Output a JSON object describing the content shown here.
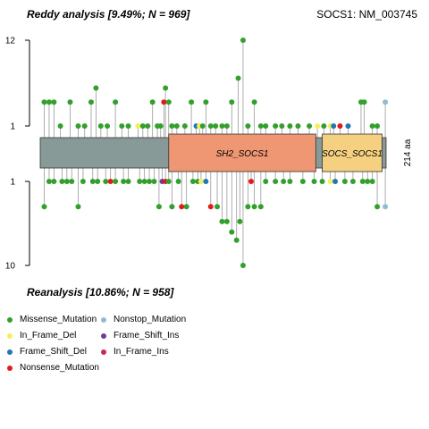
{
  "titles": {
    "top": "Reddy analysis [9.49%; N = 969]",
    "bottom": "Reanalysis [10.86%; N = 958]",
    "gene": "SOCS1: NM_003745"
  },
  "chart_data": {
    "type": "lollipop",
    "protein_length": 214,
    "length_label": "214 aa",
    "axis_top": {
      "ticks": [
        1,
        12
      ],
      "tick_labels": [
        "1",
        "12"
      ],
      "range": [
        1,
        12
      ]
    },
    "axis_bottom": {
      "ticks": [
        1,
        10
      ],
      "tick_labels": [
        "1",
        "10"
      ],
      "range": [
        1,
        10
      ]
    },
    "domains": [
      {
        "name": "SH2_SOCS1",
        "start": 80,
        "end": 171,
        "color": "#ef9673"
      },
      {
        "name": "SOCS_SOCS1",
        "start": 175,
        "end": 212,
        "color": "#f4d080"
      }
    ],
    "backbone_color": "#879a98",
    "legend": [
      {
        "label": "Missense_Mutation",
        "color": "#33a02c"
      },
      {
        "label": "Nonstop_Mutation",
        "color": "#8fbdd0"
      },
      {
        "label": "In_Frame_Del",
        "color": "#f5ef5b"
      },
      {
        "label": "Frame_Shift_Ins",
        "color": "#6a3d9a"
      },
      {
        "label": "Frame_Shift_Del",
        "color": "#1f78b4"
      },
      {
        "label": "In_Frame_Ins",
        "color": "#c62a50"
      },
      {
        "label": "Nonsense_Mutation",
        "color": "#e31a1c"
      }
    ],
    "top_mutations": [
      {
        "pos": 3,
        "count": 2,
        "type": "Missense_Mutation"
      },
      {
        "pos": 6,
        "count": 2,
        "type": "Missense_Mutation"
      },
      {
        "pos": 9,
        "count": 2,
        "type": "Missense_Mutation"
      },
      {
        "pos": 13,
        "count": 1,
        "type": "Missense_Mutation"
      },
      {
        "pos": 19,
        "count": 2,
        "type": "Missense_Mutation"
      },
      {
        "pos": 24,
        "count": 1,
        "type": "Missense_Mutation"
      },
      {
        "pos": 28,
        "count": 1,
        "type": "Missense_Mutation"
      },
      {
        "pos": 32,
        "count": 2,
        "type": "Missense_Mutation"
      },
      {
        "pos": 35,
        "count": 3,
        "type": "Missense_Mutation"
      },
      {
        "pos": 38,
        "count": 1,
        "type": "Missense_Mutation"
      },
      {
        "pos": 42,
        "count": 1,
        "type": "Missense_Mutation"
      },
      {
        "pos": 47,
        "count": 2,
        "type": "Missense_Mutation"
      },
      {
        "pos": 51,
        "count": 1,
        "type": "Missense_Mutation"
      },
      {
        "pos": 55,
        "count": 1,
        "type": "Missense_Mutation"
      },
      {
        "pos": 61,
        "count": 1,
        "type": "In_Frame_Del"
      },
      {
        "pos": 64,
        "count": 1,
        "type": "Missense_Mutation"
      },
      {
        "pos": 67,
        "count": 1,
        "type": "Missense_Mutation"
      },
      {
        "pos": 70,
        "count": 2,
        "type": "Missense_Mutation"
      },
      {
        "pos": 73,
        "count": 1,
        "type": "Missense_Mutation"
      },
      {
        "pos": 75,
        "count": 1,
        "type": "Missense_Mutation"
      },
      {
        "pos": 77,
        "count": 2,
        "type": "Nonsense_Mutation"
      },
      {
        "pos": 78,
        "count": 3,
        "type": "Missense_Mutation"
      },
      {
        "pos": 80,
        "count": 2,
        "type": "Missense_Mutation"
      },
      {
        "pos": 82,
        "count": 1,
        "type": "Missense_Mutation"
      },
      {
        "pos": 85,
        "count": 1,
        "type": "Missense_Mutation"
      },
      {
        "pos": 90,
        "count": 1,
        "type": "Missense_Mutation"
      },
      {
        "pos": 94,
        "count": 2,
        "type": "Missense_Mutation"
      },
      {
        "pos": 97,
        "count": 1,
        "type": "Frame_Shift_Del"
      },
      {
        "pos": 99,
        "count": 1,
        "type": "In_Frame_Del"
      },
      {
        "pos": 101,
        "count": 1,
        "type": "Missense_Mutation"
      },
      {
        "pos": 103,
        "count": 2,
        "type": "Missense_Mutation"
      },
      {
        "pos": 106,
        "count": 1,
        "type": "Missense_Mutation"
      },
      {
        "pos": 109,
        "count": 1,
        "type": "Missense_Mutation"
      },
      {
        "pos": 113,
        "count": 1,
        "type": "Missense_Mutation"
      },
      {
        "pos": 116,
        "count": 1,
        "type": "Missense_Mutation"
      },
      {
        "pos": 119,
        "count": 2,
        "type": "Missense_Mutation"
      },
      {
        "pos": 123,
        "count": 4,
        "type": "Missense_Mutation"
      },
      {
        "pos": 126,
        "count": 12,
        "type": "Missense_Mutation"
      },
      {
        "pos": 129,
        "count": 1,
        "type": "Missense_Mutation"
      },
      {
        "pos": 133,
        "count": 2,
        "type": "Missense_Mutation"
      },
      {
        "pos": 137,
        "count": 1,
        "type": "Missense_Mutation"
      },
      {
        "pos": 140,
        "count": 1,
        "type": "Missense_Mutation"
      },
      {
        "pos": 146,
        "count": 1,
        "type": "Missense_Mutation"
      },
      {
        "pos": 150,
        "count": 1,
        "type": "Missense_Mutation"
      },
      {
        "pos": 155,
        "count": 1,
        "type": "Missense_Mutation"
      },
      {
        "pos": 160,
        "count": 1,
        "type": "Missense_Mutation"
      },
      {
        "pos": 167,
        "count": 1,
        "type": "Missense_Mutation"
      },
      {
        "pos": 172,
        "count": 1,
        "type": "In_Frame_Del"
      },
      {
        "pos": 176,
        "count": 1,
        "type": "Missense_Mutation"
      },
      {
        "pos": 180,
        "count": 1,
        "type": "In_Frame_Del"
      },
      {
        "pos": 182,
        "count": 1,
        "type": "Frame_Shift_Del"
      },
      {
        "pos": 186,
        "count": 1,
        "type": "Nonsense_Mutation"
      },
      {
        "pos": 191,
        "count": 1,
        "type": "Frame_Shift_Del"
      },
      {
        "pos": 199,
        "count": 2,
        "type": "Missense_Mutation"
      },
      {
        "pos": 201,
        "count": 2,
        "type": "Missense_Mutation"
      },
      {
        "pos": 206,
        "count": 1,
        "type": "Missense_Mutation"
      },
      {
        "pos": 209,
        "count": 1,
        "type": "Missense_Mutation"
      },
      {
        "pos": 214,
        "count": 2,
        "type": "Nonstop_Mutation"
      }
    ],
    "bottom_mutations": [
      {
        "pos": 3,
        "count": 2,
        "type": "Missense_Mutation"
      },
      {
        "pos": 6,
        "count": 1,
        "type": "Missense_Mutation"
      },
      {
        "pos": 9,
        "count": 1,
        "type": "Missense_Mutation"
      },
      {
        "pos": 14,
        "count": 1,
        "type": "Missense_Mutation"
      },
      {
        "pos": 17,
        "count": 1,
        "type": "Missense_Mutation"
      },
      {
        "pos": 20,
        "count": 1,
        "type": "Missense_Mutation"
      },
      {
        "pos": 24,
        "count": 2,
        "type": "Missense_Mutation"
      },
      {
        "pos": 27,
        "count": 1,
        "type": "Missense_Mutation"
      },
      {
        "pos": 33,
        "count": 1,
        "type": "Missense_Mutation"
      },
      {
        "pos": 36,
        "count": 1,
        "type": "Missense_Mutation"
      },
      {
        "pos": 41,
        "count": 1,
        "type": "Missense_Mutation"
      },
      {
        "pos": 44,
        "count": 1,
        "type": "Nonsense_Mutation"
      },
      {
        "pos": 47,
        "count": 1,
        "type": "Missense_Mutation"
      },
      {
        "pos": 52,
        "count": 1,
        "type": "Missense_Mutation"
      },
      {
        "pos": 55,
        "count": 1,
        "type": "Missense_Mutation"
      },
      {
        "pos": 62,
        "count": 1,
        "type": "Missense_Mutation"
      },
      {
        "pos": 65,
        "count": 1,
        "type": "Missense_Mutation"
      },
      {
        "pos": 68,
        "count": 1,
        "type": "Missense_Mutation"
      },
      {
        "pos": 71,
        "count": 1,
        "type": "Missense_Mutation"
      },
      {
        "pos": 74,
        "count": 2,
        "type": "Missense_Mutation"
      },
      {
        "pos": 76,
        "count": 1,
        "type": "Frame_Shift_Ins"
      },
      {
        "pos": 78,
        "count": 1,
        "type": "Nonsense_Mutation"
      },
      {
        "pos": 80,
        "count": 1,
        "type": "Missense_Mutation"
      },
      {
        "pos": 82,
        "count": 2,
        "type": "Missense_Mutation"
      },
      {
        "pos": 86,
        "count": 1,
        "type": "Missense_Mutation"
      },
      {
        "pos": 88,
        "count": 2,
        "type": "Nonsense_Mutation"
      },
      {
        "pos": 91,
        "count": 2,
        "type": "Missense_Mutation"
      },
      {
        "pos": 95,
        "count": 1,
        "type": "Missense_Mutation"
      },
      {
        "pos": 98,
        "count": 1,
        "type": "Missense_Mutation"
      },
      {
        "pos": 100,
        "count": 1,
        "type": "In_Frame_Del"
      },
      {
        "pos": 103,
        "count": 1,
        "type": "Frame_Shift_Del"
      },
      {
        "pos": 106,
        "count": 2,
        "type": "Nonsense_Mutation"
      },
      {
        "pos": 110,
        "count": 2,
        "type": "Missense_Mutation"
      },
      {
        "pos": 113,
        "count": 3,
        "type": "Missense_Mutation"
      },
      {
        "pos": 116,
        "count": 3,
        "type": "Missense_Mutation"
      },
      {
        "pos": 119,
        "count": 4,
        "type": "Missense_Mutation"
      },
      {
        "pos": 122,
        "count": 5,
        "type": "Missense_Mutation"
      },
      {
        "pos": 124,
        "count": 3,
        "type": "Missense_Mutation"
      },
      {
        "pos": 126,
        "count": 10,
        "type": "Missense_Mutation"
      },
      {
        "pos": 129,
        "count": 2,
        "type": "Missense_Mutation"
      },
      {
        "pos": 131,
        "count": 1,
        "type": "Nonsense_Mutation"
      },
      {
        "pos": 133,
        "count": 2,
        "type": "Missense_Mutation"
      },
      {
        "pos": 137,
        "count": 2,
        "type": "Missense_Mutation"
      },
      {
        "pos": 140,
        "count": 1,
        "type": "Missense_Mutation"
      },
      {
        "pos": 146,
        "count": 1,
        "type": "Missense_Mutation"
      },
      {
        "pos": 151,
        "count": 1,
        "type": "Missense_Mutation"
      },
      {
        "pos": 155,
        "count": 1,
        "type": "Missense_Mutation"
      },
      {
        "pos": 163,
        "count": 1,
        "type": "Missense_Mutation"
      },
      {
        "pos": 170,
        "count": 1,
        "type": "Missense_Mutation"
      },
      {
        "pos": 175,
        "count": 1,
        "type": "Missense_Mutation"
      },
      {
        "pos": 180,
        "count": 1,
        "type": "In_Frame_Del"
      },
      {
        "pos": 183,
        "count": 1,
        "type": "Frame_Shift_Del"
      },
      {
        "pos": 189,
        "count": 1,
        "type": "Missense_Mutation"
      },
      {
        "pos": 194,
        "count": 1,
        "type": "Missense_Mutation"
      },
      {
        "pos": 200,
        "count": 1,
        "type": "Missense_Mutation"
      },
      {
        "pos": 203,
        "count": 1,
        "type": "Missense_Mutation"
      },
      {
        "pos": 206,
        "count": 1,
        "type": "Missense_Mutation"
      },
      {
        "pos": 209,
        "count": 2,
        "type": "Missense_Mutation"
      },
      {
        "pos": 214,
        "count": 2,
        "type": "Nonstop_Mutation"
      }
    ]
  }
}
